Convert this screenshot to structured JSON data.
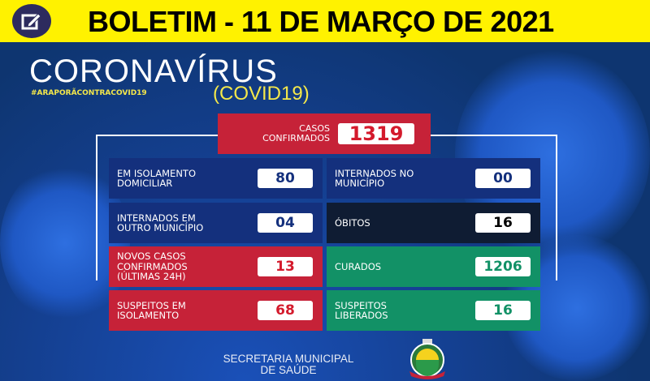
{
  "header": {
    "title": "BOLETIM - 11 DE MARÇO DE 2021",
    "icon": "edit-icon",
    "bg_color": "#fff200"
  },
  "brand": {
    "title": "CORONAVÍRUS",
    "subtitle": "(COVID19)",
    "hashtag": "#ARAPORÃCONTRACOVID19"
  },
  "confirmed": {
    "label1": "CASOS",
    "label2": "CONFIRMADOS",
    "value": "1319"
  },
  "tiles": [
    {
      "label1": "EM ISOLAMENTO",
      "label2": "DOMICILIAR",
      "value": "80",
      "color": "#14307d",
      "value_color": "#14307d"
    },
    {
      "label1": "INTERNADOS NO",
      "label2": "MUNICÍPIO",
      "value": "00",
      "color": "#14307d",
      "value_color": "#14307d"
    },
    {
      "label1": "INTERNADOS EM",
      "label2": "OUTRO MUNICÍPIO",
      "value": "04",
      "color": "#14307d",
      "value_color": "#14307d"
    },
    {
      "label1": "ÓBITOS",
      "label2": "",
      "value": "16",
      "color": "#0f1c33",
      "value_color": "#000000"
    },
    {
      "label1": "NOVOS CASOS",
      "label2": "CONFIRMADOS",
      "label3": "(ÚLTIMAS 24H)",
      "value": "13",
      "color": "#c62238",
      "value_color": "#d41a2c"
    },
    {
      "label1": "CURADOS",
      "label2": "",
      "value": "1206",
      "color": "#129166",
      "value_color": "#129166"
    },
    {
      "label1": "SUSPEITOS EM",
      "label2": "ISOLAMENTO",
      "value": "68",
      "color": "#c62238",
      "value_color": "#d41a2c"
    },
    {
      "label1": "SUSPEITOS",
      "label2": "LIBERADOS",
      "value": "16",
      "color": "#129166",
      "value_color": "#129166"
    }
  ],
  "footer": {
    "line1": "SECRETARIA MUNICIPAL",
    "line2": "DE SAÚDE",
    "logo": "municipal-crest"
  }
}
